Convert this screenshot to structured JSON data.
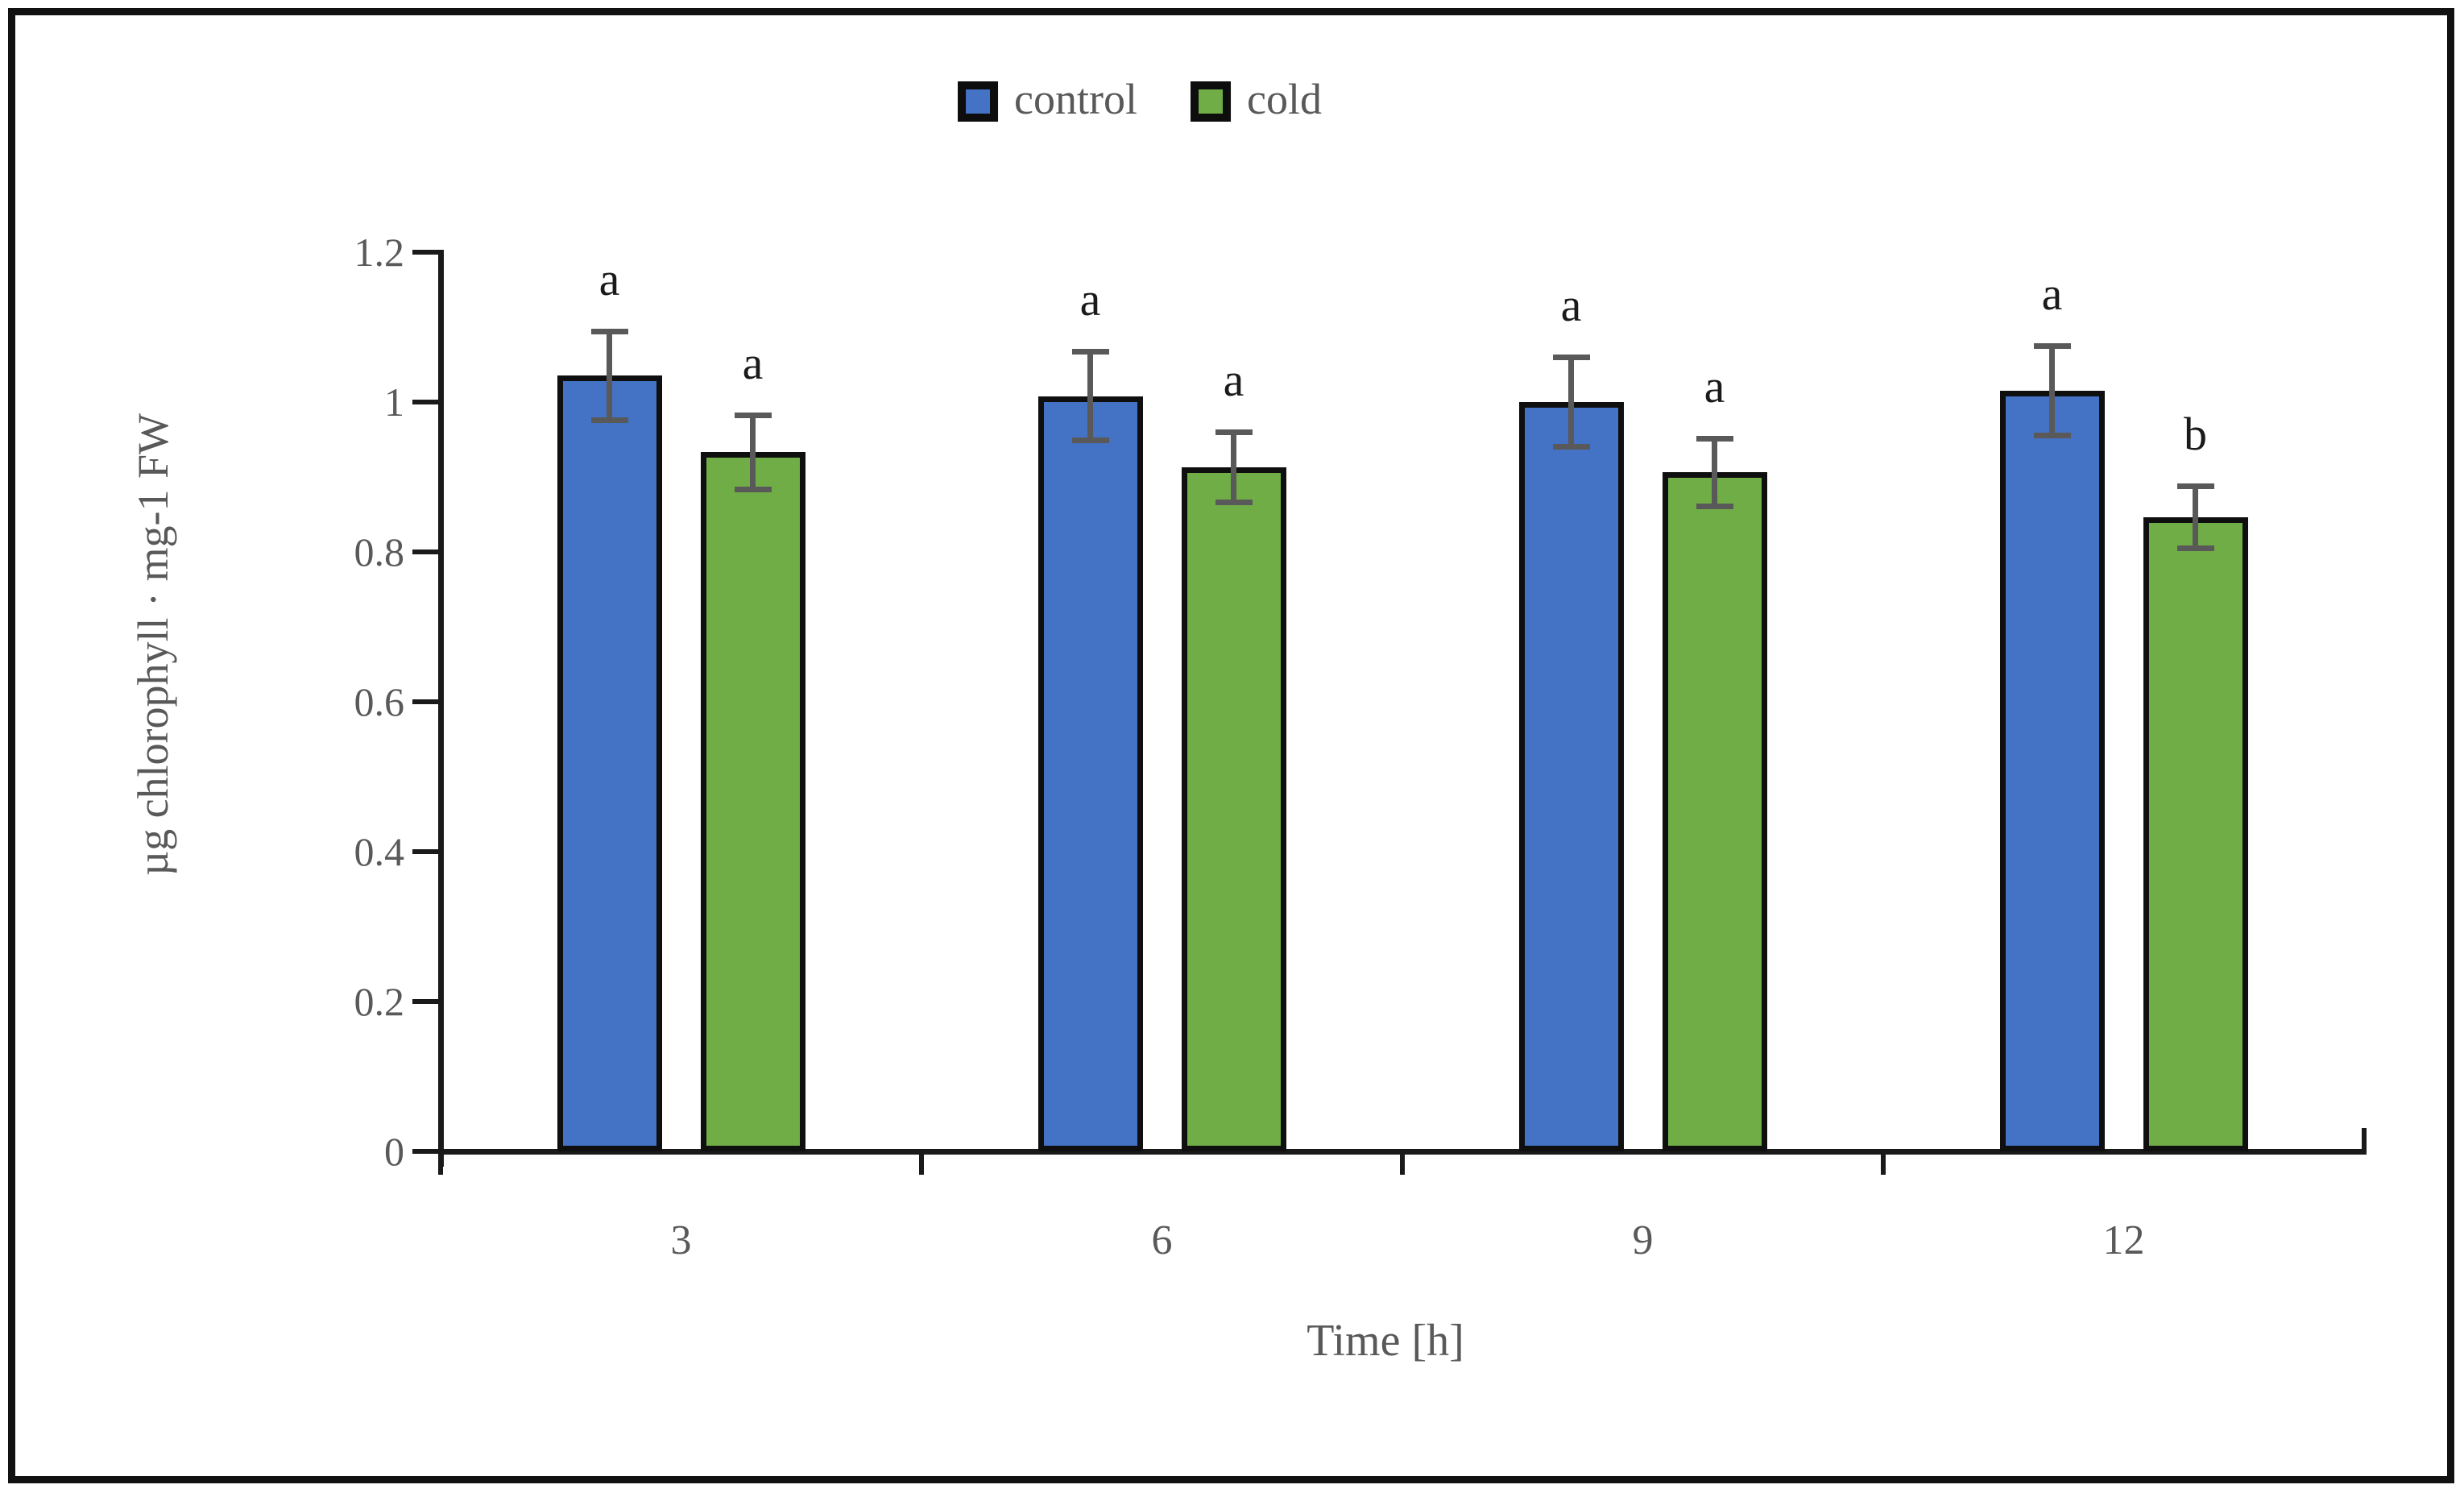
{
  "figure": {
    "background": "#ffffff",
    "border_color": "#111111"
  },
  "legend": {
    "items": [
      {
        "label": "control",
        "color": "#4472C4"
      },
      {
        "label": "cold",
        "color": "#70AD47"
      }
    ]
  },
  "axes": {
    "y_title": "µg chlorophyll · mg-1 FW",
    "x_title": "Time [h]",
    "y_tick_labels": [
      "0",
      "0.2",
      "0.4",
      "0.6",
      "0.8",
      "1",
      "1.2"
    ],
    "x_tick_labels": [
      "3",
      "6",
      "9",
      "12"
    ]
  },
  "chart_data": {
    "type": "bar",
    "title": "",
    "xlabel": "Time [h]",
    "ylabel": "µg chlorophyll · mg-1 FW",
    "categories": [
      "3",
      "6",
      "9",
      "12"
    ],
    "ylim": [
      0,
      1.2
    ],
    "y_ticks": [
      0,
      0.2,
      0.4,
      0.6,
      0.8,
      1,
      1.2
    ],
    "grid": false,
    "legend_position": "top-center",
    "error_bar_color": "#595959",
    "series": [
      {
        "name": "control",
        "color": "#4472C4",
        "values": [
          1.035,
          1.008,
          1.0,
          1.015
        ],
        "errors": [
          0.06,
          0.06,
          0.06,
          0.06
        ],
        "sig_letters": [
          "a",
          "a",
          "a",
          "a"
        ]
      },
      {
        "name": "cold",
        "color": "#70AD47",
        "values": [
          0.933,
          0.913,
          0.906,
          0.846
        ],
        "errors": [
          0.05,
          0.047,
          0.046,
          0.042
        ],
        "sig_letters": [
          "a",
          "a",
          "a",
          "b"
        ]
      }
    ]
  }
}
